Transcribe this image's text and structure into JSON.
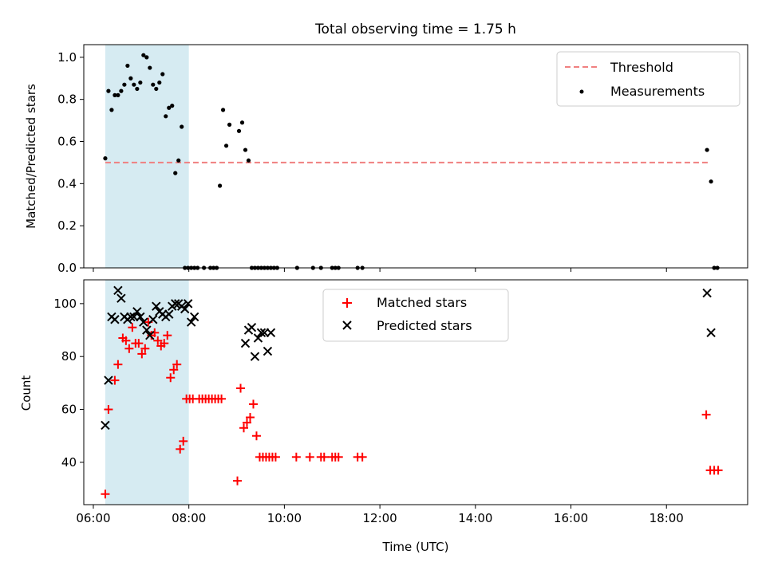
{
  "title": "Total observing time = 1.75 h",
  "chart_data": [
    {
      "type": "scatter",
      "ylabel": "Matched/Predicted stars",
      "xlabel": "",
      "xlim": [
        "05:48",
        "19:42"
      ],
      "ylim": [
        0,
        1.06
      ],
      "yticks": [
        "0.0",
        "0.2",
        "0.4",
        "0.6",
        "0.8",
        "1.0"
      ],
      "shaded_interval": [
        "06:15",
        "08:00"
      ],
      "threshold": {
        "value": 0.5,
        "x_range": [
          "06:15",
          "18:55"
        ],
        "color": "#f08080"
      },
      "legend": {
        "position": "top-right",
        "threshold_label": "Threshold",
        "measurements_label": "Measurements"
      },
      "series": [
        {
          "name": "Measurements",
          "x": [
            "06:15",
            "06:19",
            "06:23",
            "06:27",
            "06:31",
            "06:35",
            "06:39",
            "06:43",
            "06:47",
            "06:51",
            "06:55",
            "06:59",
            "07:03",
            "07:07",
            "07:11",
            "07:15",
            "07:19",
            "07:23",
            "07:27",
            "07:31",
            "07:35",
            "07:39",
            "07:43",
            "07:47",
            "07:51",
            "07:55",
            "07:59",
            "08:03",
            "08:07",
            "08:11",
            "08:19",
            "08:27",
            "08:31",
            "08:35",
            "08:39",
            "08:43",
            "08:47",
            "08:51",
            "09:03",
            "09:07",
            "09:11",
            "09:15",
            "09:19",
            "09:23",
            "09:27",
            "09:31",
            "09:35",
            "09:39",
            "09:43",
            "09:47",
            "09:51",
            "10:16",
            "10:36",
            "10:46",
            "11:00",
            "11:04",
            "11:08",
            "11:32",
            "11:38",
            "18:51",
            "18:56",
            "19:00",
            "19:04"
          ],
          "y": [
            0.52,
            0.84,
            0.75,
            0.82,
            0.82,
            0.84,
            0.87,
            0.96,
            0.9,
            0.87,
            0.85,
            0.88,
            1.01,
            1.0,
            0.95,
            0.87,
            0.85,
            0.88,
            0.92,
            0.72,
            0.76,
            0.77,
            0.45,
            0.51,
            0.67,
            0,
            0,
            0,
            0,
            0,
            0,
            0,
            0,
            0,
            0.39,
            0.75,
            0.58,
            0.68,
            0.65,
            0.69,
            0.56,
            0.51,
            0,
            0,
            0,
            0,
            0,
            0,
            0,
            0,
            0,
            0,
            0,
            0,
            0,
            0,
            0,
            0,
            0,
            0.56,
            0.41,
            0,
            0
          ]
        }
      ]
    },
    {
      "type": "scatter",
      "ylabel": "Count",
      "xlabel": "Time (UTC)",
      "xlim": [
        "05:48",
        "19:42"
      ],
      "ylim": [
        24,
        109
      ],
      "xticks": [
        "06:00",
        "08:00",
        "10:00",
        "12:00",
        "14:00",
        "16:00",
        "18:00"
      ],
      "yticks": [
        "40",
        "60",
        "80",
        "100"
      ],
      "shaded_interval": [
        "06:15",
        "08:00"
      ],
      "legend": {
        "position": "top-center",
        "matched_label": "Matched stars",
        "predicted_label": "Predicted stars"
      },
      "series": [
        {
          "name": "Matched stars",
          "x": [
            "06:15",
            "06:19",
            "06:27",
            "06:31",
            "06:37",
            "06:41",
            "06:45",
            "06:49",
            "06:53",
            "06:57",
            "07:01",
            "07:05",
            "07:09",
            "07:13",
            "07:17",
            "07:21",
            "07:25",
            "07:29",
            "07:33",
            "07:37",
            "07:41",
            "07:45",
            "07:49",
            "07:53",
            "07:57",
            "08:01",
            "08:05",
            "08:13",
            "08:17",
            "08:21",
            "08:25",
            "08:29",
            "08:33",
            "08:37",
            "08:41",
            "09:01",
            "09:05",
            "09:09",
            "09:13",
            "09:17",
            "09:21",
            "09:25",
            "09:29",
            "09:33",
            "09:37",
            "09:41",
            "09:45",
            "09:49",
            "10:15",
            "10:32",
            "10:46",
            "10:50",
            "11:00",
            "11:04",
            "11:08",
            "11:32",
            "11:38",
            "18:50",
            "18:55",
            "19:00",
            "19:05"
          ],
          "y": [
            28,
            60,
            71,
            77,
            87,
            86,
            83,
            91,
            85,
            85,
            81,
            83,
            93,
            88,
            89,
            86,
            84,
            85,
            88,
            72,
            75,
            77,
            45,
            48,
            64,
            64,
            64,
            64,
            64,
            64,
            64,
            64,
            64,
            64,
            64,
            33,
            68,
            53,
            55,
            57,
            62,
            50,
            42,
            42,
            42,
            42,
            42,
            42,
            42,
            42,
            42,
            42,
            42,
            42,
            42,
            42,
            42,
            58,
            37,
            37,
            37
          ]
        },
        {
          "name": "Predicted stars",
          "x": [
            "06:15",
            "06:19",
            "06:23",
            "06:27",
            "06:31",
            "06:35",
            "06:39",
            "06:43",
            "06:47",
            "06:51",
            "06:55",
            "06:59",
            "07:03",
            "07:07",
            "07:11",
            "07:15",
            "07:19",
            "07:23",
            "07:27",
            "07:31",
            "07:35",
            "07:39",
            "07:43",
            "07:47",
            "07:51",
            "07:55",
            "07:59",
            "08:03",
            "08:07",
            "09:11",
            "09:15",
            "09:19",
            "09:23",
            "09:27",
            "09:31",
            "09:35",
            "09:39",
            "09:43",
            "18:51",
            "18:56"
          ],
          "y": [
            54,
            71,
            95,
            94,
            105,
            102,
            95,
            94,
            95,
            95,
            97,
            95,
            93,
            90,
            88,
            94,
            99,
            97,
            96,
            95,
            96,
            99,
            100,
            100,
            99,
            98,
            100,
            93,
            95,
            85,
            90,
            91,
            80,
            87,
            89,
            89,
            82,
            89,
            104,
            89
          ]
        }
      ]
    }
  ]
}
